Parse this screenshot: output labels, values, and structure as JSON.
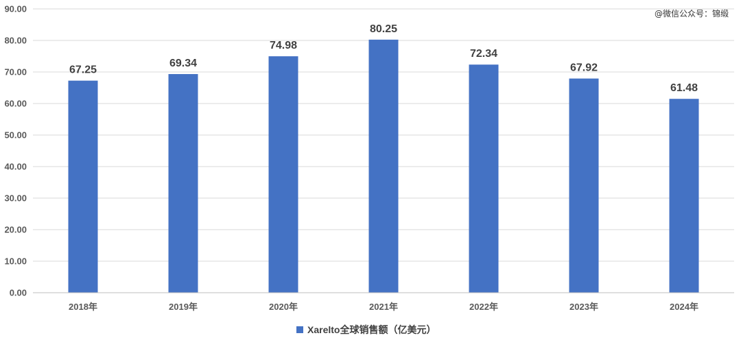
{
  "watermark": "@微信公众号：锦缎",
  "chart_data": {
    "type": "bar",
    "categories": [
      "2018年",
      "2019年",
      "2020年",
      "2021年",
      "2022年",
      "2023年",
      "2024年"
    ],
    "series": [
      {
        "name": "Xarelto全球销售额（亿美元）",
        "values": [
          67.25,
          69.34,
          74.98,
          80.25,
          72.34,
          67.92,
          61.48
        ],
        "labels": [
          "67.25",
          "69.34",
          "74.98",
          "80.25",
          "72.34",
          "67.92",
          "61.48"
        ],
        "color": "#4472C4"
      }
    ],
    "ylim": [
      0,
      90
    ],
    "yticks": [
      "0.00",
      "10.00",
      "20.00",
      "30.00",
      "40.00",
      "50.00",
      "60.00",
      "70.00",
      "80.00",
      "90.00"
    ],
    "grid": true,
    "legend_position": "bottom"
  }
}
